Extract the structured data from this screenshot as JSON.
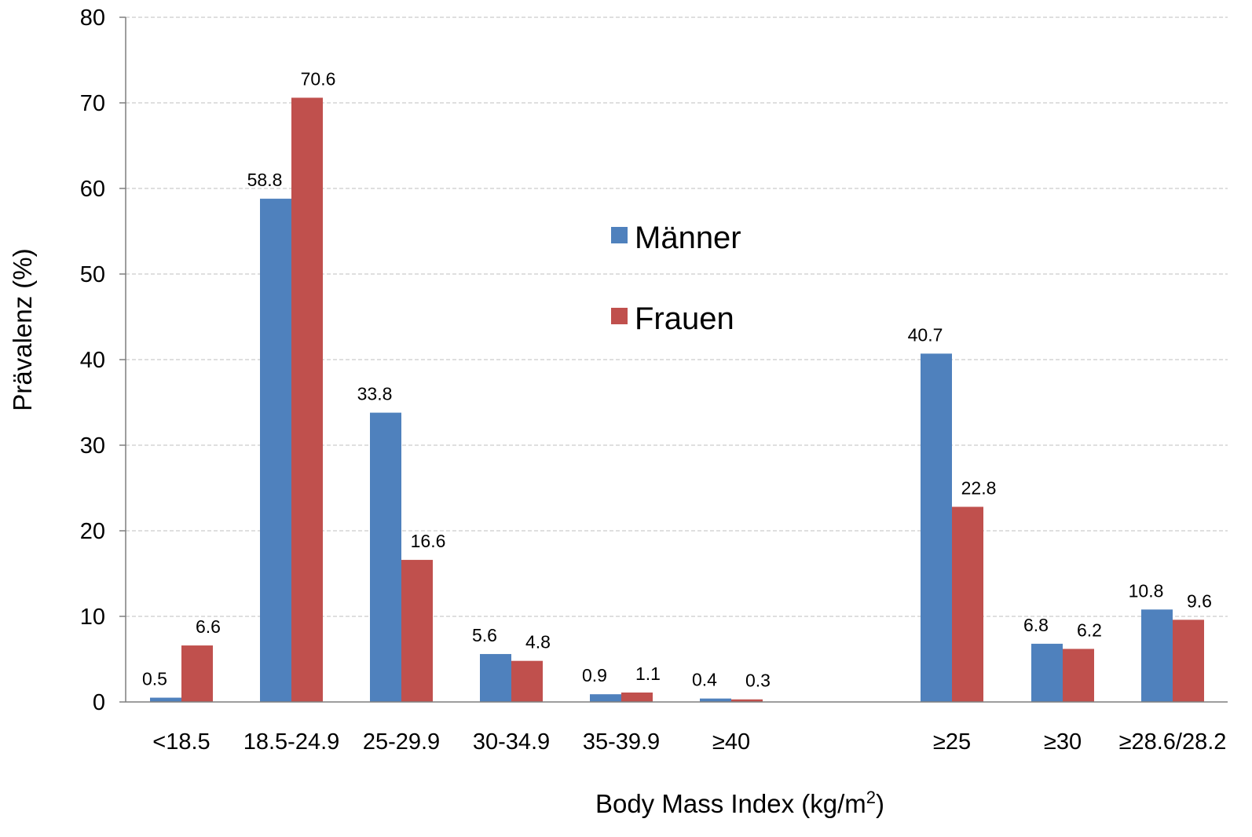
{
  "chart_data": {
    "type": "bar",
    "title": "",
    "xlabel": "Body Mass Index (kg/m",
    "xlabel_sup": "2",
    "xlabel_close": ")",
    "ylabel": "Prävalenz (%)",
    "ylim": [
      0,
      80
    ],
    "yticks": [
      0,
      10,
      20,
      30,
      40,
      50,
      60,
      70,
      80
    ],
    "grid": true,
    "legend_position": "center",
    "categories": [
      "<18.5",
      "18.5-24.9",
      "25-29.9",
      "30-34.9",
      "35-39.9",
      "≥40",
      "≥25",
      "≥30",
      "≥28.6/28.2"
    ],
    "series": [
      {
        "name": "Männer",
        "color": "#4f81bd",
        "values": [
          0.5,
          58.8,
          33.8,
          5.6,
          0.9,
          0.4,
          40.7,
          6.8,
          10.8
        ]
      },
      {
        "name": "Frauen",
        "color": "#c0504d",
        "values": [
          6.6,
          70.6,
          16.6,
          4.8,
          1.1,
          0.3,
          22.8,
          6.2,
          9.6
        ]
      }
    ]
  }
}
